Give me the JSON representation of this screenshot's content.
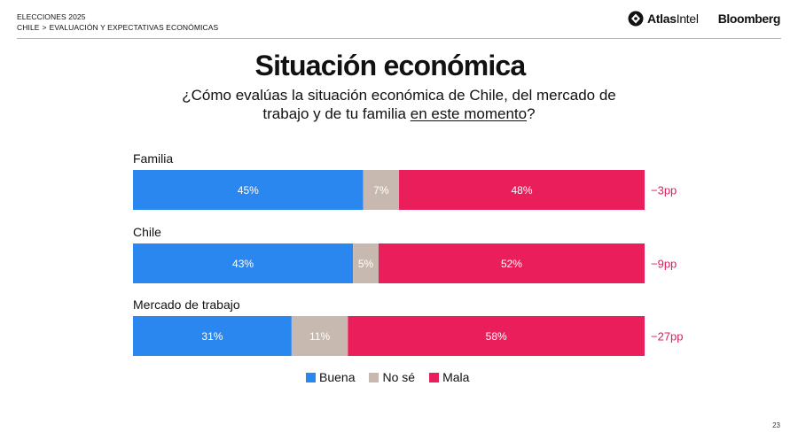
{
  "header": {
    "line1": "ELECCIONES 2025",
    "crumb_country": "CHILE",
    "crumb_sep": ">",
    "crumb_section": "EVALUACIÓN Y EXPECTATIVAS ECONÓMICAS",
    "logo_atlas_bold": "Atlas",
    "logo_atlas_light": "Intel",
    "logo_bloomberg": "Bloomberg"
  },
  "page_number": "23",
  "colors": {
    "buena": "#2b87f0",
    "nose": "#c8b9b0",
    "mala": "#e91e5a",
    "diff": "#d81f5a"
  },
  "chart_data": {
    "type": "bar",
    "orientation": "horizontal-stacked-100",
    "title": "Situación económica",
    "subtitle_part1": "¿Cómo evalúas la situación económica de Chile, del mercado de",
    "subtitle_part2": "trabajo y de tu familia ",
    "subtitle_underlined": "en este momento",
    "subtitle_end": "?",
    "categories": [
      "Familia",
      "Chile",
      "Mercado de trabajo"
    ],
    "series": [
      {
        "name": "Buena",
        "values": [
          45,
          43,
          31
        ],
        "labels": [
          "45%",
          "43%",
          "31%"
        ]
      },
      {
        "name": "No sé",
        "values": [
          7,
          5,
          11
        ],
        "labels": [
          "7%",
          "5%",
          "11%"
        ]
      },
      {
        "name": "Mala",
        "values": [
          48,
          52,
          58
        ],
        "labels": [
          "48%",
          "52%",
          "58%"
        ]
      }
    ],
    "net_labels": [
      "−3pp",
      "−9pp",
      "−27pp"
    ],
    "xlim": [
      0,
      100
    ]
  }
}
